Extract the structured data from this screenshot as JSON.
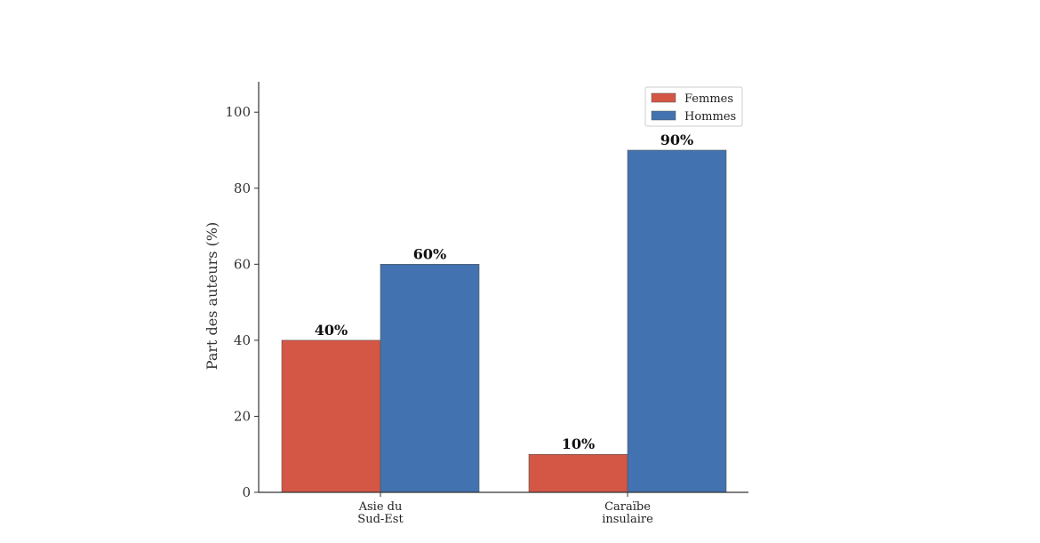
{
  "chart_data": {
    "type": "bar",
    "categories": [
      "Asie du Sud-Est",
      "Caraïbe insulaire"
    ],
    "category_lines": [
      [
        "Asie du",
        "Sud-Est"
      ],
      [
        "Caraïbe",
        "insulaire"
      ]
    ],
    "series": [
      {
        "name": "Femmes",
        "values": [
          40,
          10
        ],
        "labels": [
          "40%",
          "10%"
        ],
        "color": "#d45644"
      },
      {
        "name": "Hommes",
        "values": [
          60,
          90
        ],
        "labels": [
          "60%",
          "90%"
        ],
        "color": "#4273b0"
      }
    ],
    "ylabel": "Part des auteurs (%)",
    "xlabel": "",
    "ylim": [
      0,
      108
    ],
    "yticks": [
      0,
      20,
      40,
      60,
      80,
      100
    ],
    "legend": "top-right",
    "grid": false
  }
}
